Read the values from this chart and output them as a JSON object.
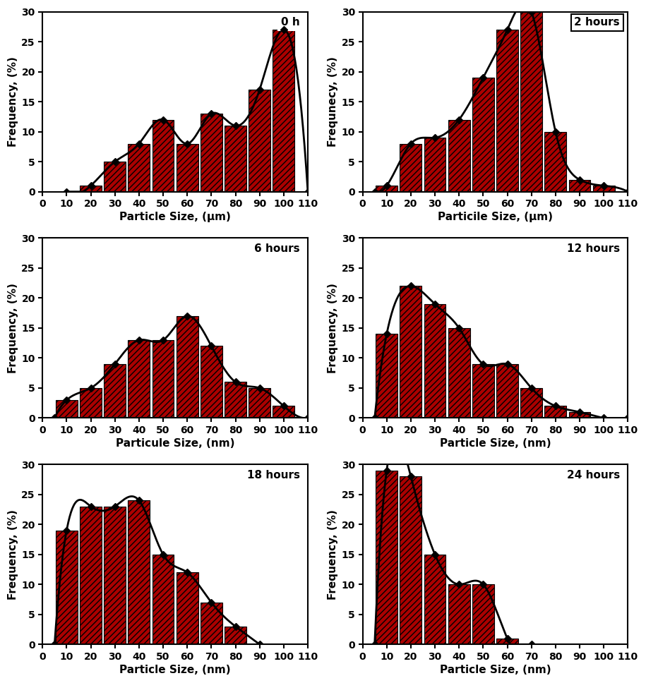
{
  "panels": [
    {
      "label": "0 h",
      "xlabel": "Particle Size, (μm)",
      "ylabel": "Frequency, (%)",
      "bar_positions": [
        20,
        30,
        40,
        50,
        60,
        70,
        80,
        90,
        100
      ],
      "bar_heights": [
        1,
        5,
        8,
        12,
        8,
        13,
        11,
        17,
        27
      ],
      "line_x": [
        10,
        20,
        30,
        40,
        50,
        60,
        70,
        80,
        90,
        100,
        110
      ],
      "line_y": [
        0,
        1,
        5,
        8,
        12,
        8,
        13,
        11,
        17,
        27,
        0
      ],
      "xlim": [
        0,
        110
      ],
      "ylim": [
        0,
        30
      ],
      "xticks": [
        0,
        10,
        20,
        30,
        40,
        50,
        60,
        70,
        80,
        90,
        100,
        110
      ],
      "yticks": [
        0,
        5,
        10,
        15,
        20,
        25,
        30
      ],
      "label_box": false
    },
    {
      "label": "2 hours",
      "xlabel": "Particile Size, (μm)",
      "ylabel": "Frequnecy, (%)",
      "bar_positions": [
        10,
        20,
        30,
        40,
        50,
        60,
        70,
        80,
        90,
        100,
        110
      ],
      "bar_heights": [
        1,
        8,
        9,
        12,
        19,
        27,
        30,
        10,
        2,
        1,
        0
      ],
      "line_x": [
        5,
        10,
        20,
        30,
        40,
        50,
        60,
        70,
        80,
        90,
        100,
        110
      ],
      "line_y": [
        0,
        1,
        8,
        9,
        12,
        19,
        27,
        30,
        10,
        2,
        1,
        0
      ],
      "xlim": [
        0,
        110
      ],
      "ylim": [
        0,
        30
      ],
      "xticks": [
        0,
        10,
        20,
        30,
        40,
        50,
        60,
        70,
        80,
        90,
        100,
        110
      ],
      "yticks": [
        0,
        5,
        10,
        15,
        20,
        25,
        30
      ],
      "label_box": true
    },
    {
      "label": "6 hours",
      "xlabel": "Particule Size, (nm)",
      "ylabel": "Frequency, (%)",
      "bar_positions": [
        10,
        20,
        30,
        40,
        50,
        60,
        70,
        80,
        90,
        100
      ],
      "bar_heights": [
        3,
        5,
        9,
        13,
        13,
        17,
        12,
        6,
        5,
        2
      ],
      "line_x": [
        5,
        10,
        20,
        30,
        40,
        50,
        60,
        70,
        80,
        90,
        100,
        110
      ],
      "line_y": [
        0,
        3,
        5,
        9,
        13,
        13,
        17,
        12,
        6,
        5,
        2,
        0
      ],
      "xlim": [
        0,
        110
      ],
      "ylim": [
        0,
        30
      ],
      "xticks": [
        0,
        10,
        20,
        30,
        40,
        50,
        60,
        70,
        80,
        90,
        100,
        110
      ],
      "yticks": [
        0,
        5,
        10,
        15,
        20,
        25,
        30
      ],
      "label_box": false
    },
    {
      "label": "12 hours",
      "xlabel": "Particle Size, (nm)",
      "ylabel": "Frequency, (%)",
      "bar_positions": [
        10,
        20,
        30,
        40,
        50,
        60,
        70,
        80,
        90,
        100
      ],
      "bar_heights": [
        14,
        22,
        19,
        15,
        9,
        9,
        5,
        2,
        1,
        0
      ],
      "line_x": [
        5,
        10,
        20,
        30,
        40,
        50,
        60,
        70,
        80,
        90,
        100,
        110
      ],
      "line_y": [
        0,
        14,
        22,
        19,
        15,
        9,
        9,
        5,
        2,
        1,
        0,
        0
      ],
      "xlim": [
        0,
        110
      ],
      "ylim": [
        0,
        30
      ],
      "xticks": [
        0,
        10,
        20,
        30,
        40,
        50,
        60,
        70,
        80,
        90,
        100,
        110
      ],
      "yticks": [
        0,
        5,
        10,
        15,
        20,
        25,
        30
      ],
      "label_box": false
    },
    {
      "label": "18 hours",
      "xlabel": "Particle Size, (nm)",
      "ylabel": "Frequency, (%)",
      "bar_positions": [
        10,
        20,
        30,
        40,
        50,
        60,
        70,
        80
      ],
      "bar_heights": [
        19,
        23,
        23,
        24,
        15,
        12,
        7,
        3
      ],
      "line_x": [
        5,
        10,
        20,
        30,
        40,
        50,
        60,
        70,
        80,
        90
      ],
      "line_y": [
        0,
        19,
        23,
        23,
        24,
        15,
        12,
        7,
        3,
        0
      ],
      "xlim": [
        0,
        110
      ],
      "ylim": [
        0,
        30
      ],
      "xticks": [
        0,
        10,
        20,
        30,
        40,
        50,
        60,
        70,
        80,
        90,
        100,
        110
      ],
      "yticks": [
        0,
        5,
        10,
        15,
        20,
        25,
        30
      ],
      "label_box": false
    },
    {
      "label": "24 hours",
      "xlabel": "Particle Size, (nm)",
      "ylabel": "Frequency, (%)",
      "bar_positions": [
        10,
        20,
        30,
        40,
        50,
        60
      ],
      "bar_heights": [
        29,
        28,
        15,
        10,
        10,
        1
      ],
      "line_x": [
        5,
        10,
        20,
        30,
        40,
        50,
        60,
        70
      ],
      "line_y": [
        0,
        29,
        28,
        15,
        10,
        10,
        1,
        0
      ],
      "xlim": [
        0,
        110
      ],
      "ylim": [
        0,
        30
      ],
      "xticks": [
        0,
        10,
        20,
        30,
        40,
        50,
        60,
        70,
        80,
        90,
        100,
        110
      ],
      "yticks": [
        0,
        5,
        10,
        15,
        20,
        25,
        30
      ],
      "label_box": false
    }
  ],
  "bar_color": "#AA0000",
  "bar_edge_color": "#000000",
  "hatch": "////",
  "line_color": "#000000",
  "marker": "D",
  "marker_size": 5,
  "bar_width": 9.0
}
